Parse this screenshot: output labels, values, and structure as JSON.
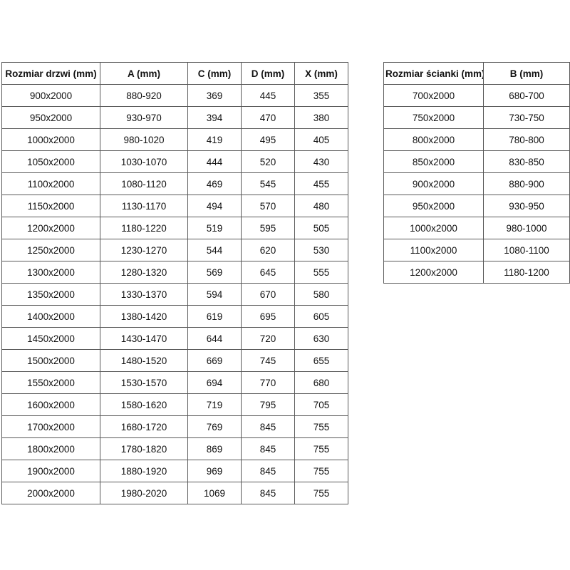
{
  "door_table": {
    "headers": [
      "Rozmiar drzwi (mm)",
      "A (mm)",
      "C (mm)",
      "D (mm)",
      "X (mm)"
    ],
    "rows": [
      [
        "900x2000",
        "880-920",
        "369",
        "445",
        "355"
      ],
      [
        "950x2000",
        "930-970",
        "394",
        "470",
        "380"
      ],
      [
        "1000x2000",
        "980-1020",
        "419",
        "495",
        "405"
      ],
      [
        "1050x2000",
        "1030-1070",
        "444",
        "520",
        "430"
      ],
      [
        "1100x2000",
        "1080-1120",
        "469",
        "545",
        "455"
      ],
      [
        "1150x2000",
        "1130-1170",
        "494",
        "570",
        "480"
      ],
      [
        "1200x2000",
        "1180-1220",
        "519",
        "595",
        "505"
      ],
      [
        "1250x2000",
        "1230-1270",
        "544",
        "620",
        "530"
      ],
      [
        "1300x2000",
        "1280-1320",
        "569",
        "645",
        "555"
      ],
      [
        "1350x2000",
        "1330-1370",
        "594",
        "670",
        "580"
      ],
      [
        "1400x2000",
        "1380-1420",
        "619",
        "695",
        "605"
      ],
      [
        "1450x2000",
        "1430-1470",
        "644",
        "720",
        "630"
      ],
      [
        "1500x2000",
        "1480-1520",
        "669",
        "745",
        "655"
      ],
      [
        "1550x2000",
        "1530-1570",
        "694",
        "770",
        "680"
      ],
      [
        "1600x2000",
        "1580-1620",
        "719",
        "795",
        "705"
      ],
      [
        "1700x2000",
        "1680-1720",
        "769",
        "845",
        "755"
      ],
      [
        "1800x2000",
        "1780-1820",
        "869",
        "845",
        "755"
      ],
      [
        "1900x2000",
        "1880-1920",
        "969",
        "845",
        "755"
      ],
      [
        "2000x2000",
        "1980-2020",
        "1069",
        "845",
        "755"
      ]
    ]
  },
  "wall_table": {
    "headers": [
      "Rozmiar ścianki (mm)",
      "B (mm)"
    ],
    "rows": [
      [
        "700x2000",
        "680-700"
      ],
      [
        "750x2000",
        "730-750"
      ],
      [
        "800x2000",
        "780-800"
      ],
      [
        "850x2000",
        "830-850"
      ],
      [
        "900x2000",
        "880-900"
      ],
      [
        "950x2000",
        "930-950"
      ],
      [
        "1000x2000",
        "980-1000"
      ],
      [
        "1100x2000",
        "1080-1100"
      ],
      [
        "1200x2000",
        "1180-1200"
      ]
    ]
  },
  "colors": {
    "border": "#595959",
    "text": "#111111",
    "background": "#ffffff"
  }
}
